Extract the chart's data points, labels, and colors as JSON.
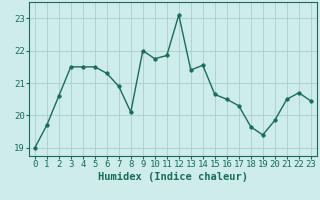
{
  "x": [
    0,
    1,
    2,
    3,
    4,
    5,
    6,
    7,
    8,
    9,
    10,
    11,
    12,
    13,
    14,
    15,
    16,
    17,
    18,
    19,
    20,
    21,
    22,
    23
  ],
  "y": [
    19.0,
    19.7,
    20.6,
    21.5,
    21.5,
    21.5,
    21.3,
    20.9,
    20.1,
    22.0,
    21.75,
    21.85,
    23.1,
    21.4,
    21.55,
    20.65,
    20.5,
    20.3,
    19.65,
    19.4,
    19.85,
    20.5,
    20.7,
    20.45
  ],
  "line_color": "#1a6b5e",
  "marker": "o",
  "markersize": 2.5,
  "linewidth": 1.0,
  "bg_color": "#ceecea",
  "grid_color": "#aacfcc",
  "xlabel": "Humidex (Indice chaleur)",
  "xlim": [
    -0.5,
    23.5
  ],
  "ylim": [
    18.75,
    23.5
  ],
  "xticks": [
    0,
    1,
    2,
    3,
    4,
    5,
    6,
    7,
    8,
    9,
    10,
    11,
    12,
    13,
    14,
    15,
    16,
    17,
    18,
    19,
    20,
    21,
    22,
    23
  ],
  "yticks": [
    19,
    20,
    21,
    22,
    23
  ],
  "xlabel_fontsize": 7.5,
  "tick_fontsize": 6.5,
  "tick_color": "#1a6b5e"
}
